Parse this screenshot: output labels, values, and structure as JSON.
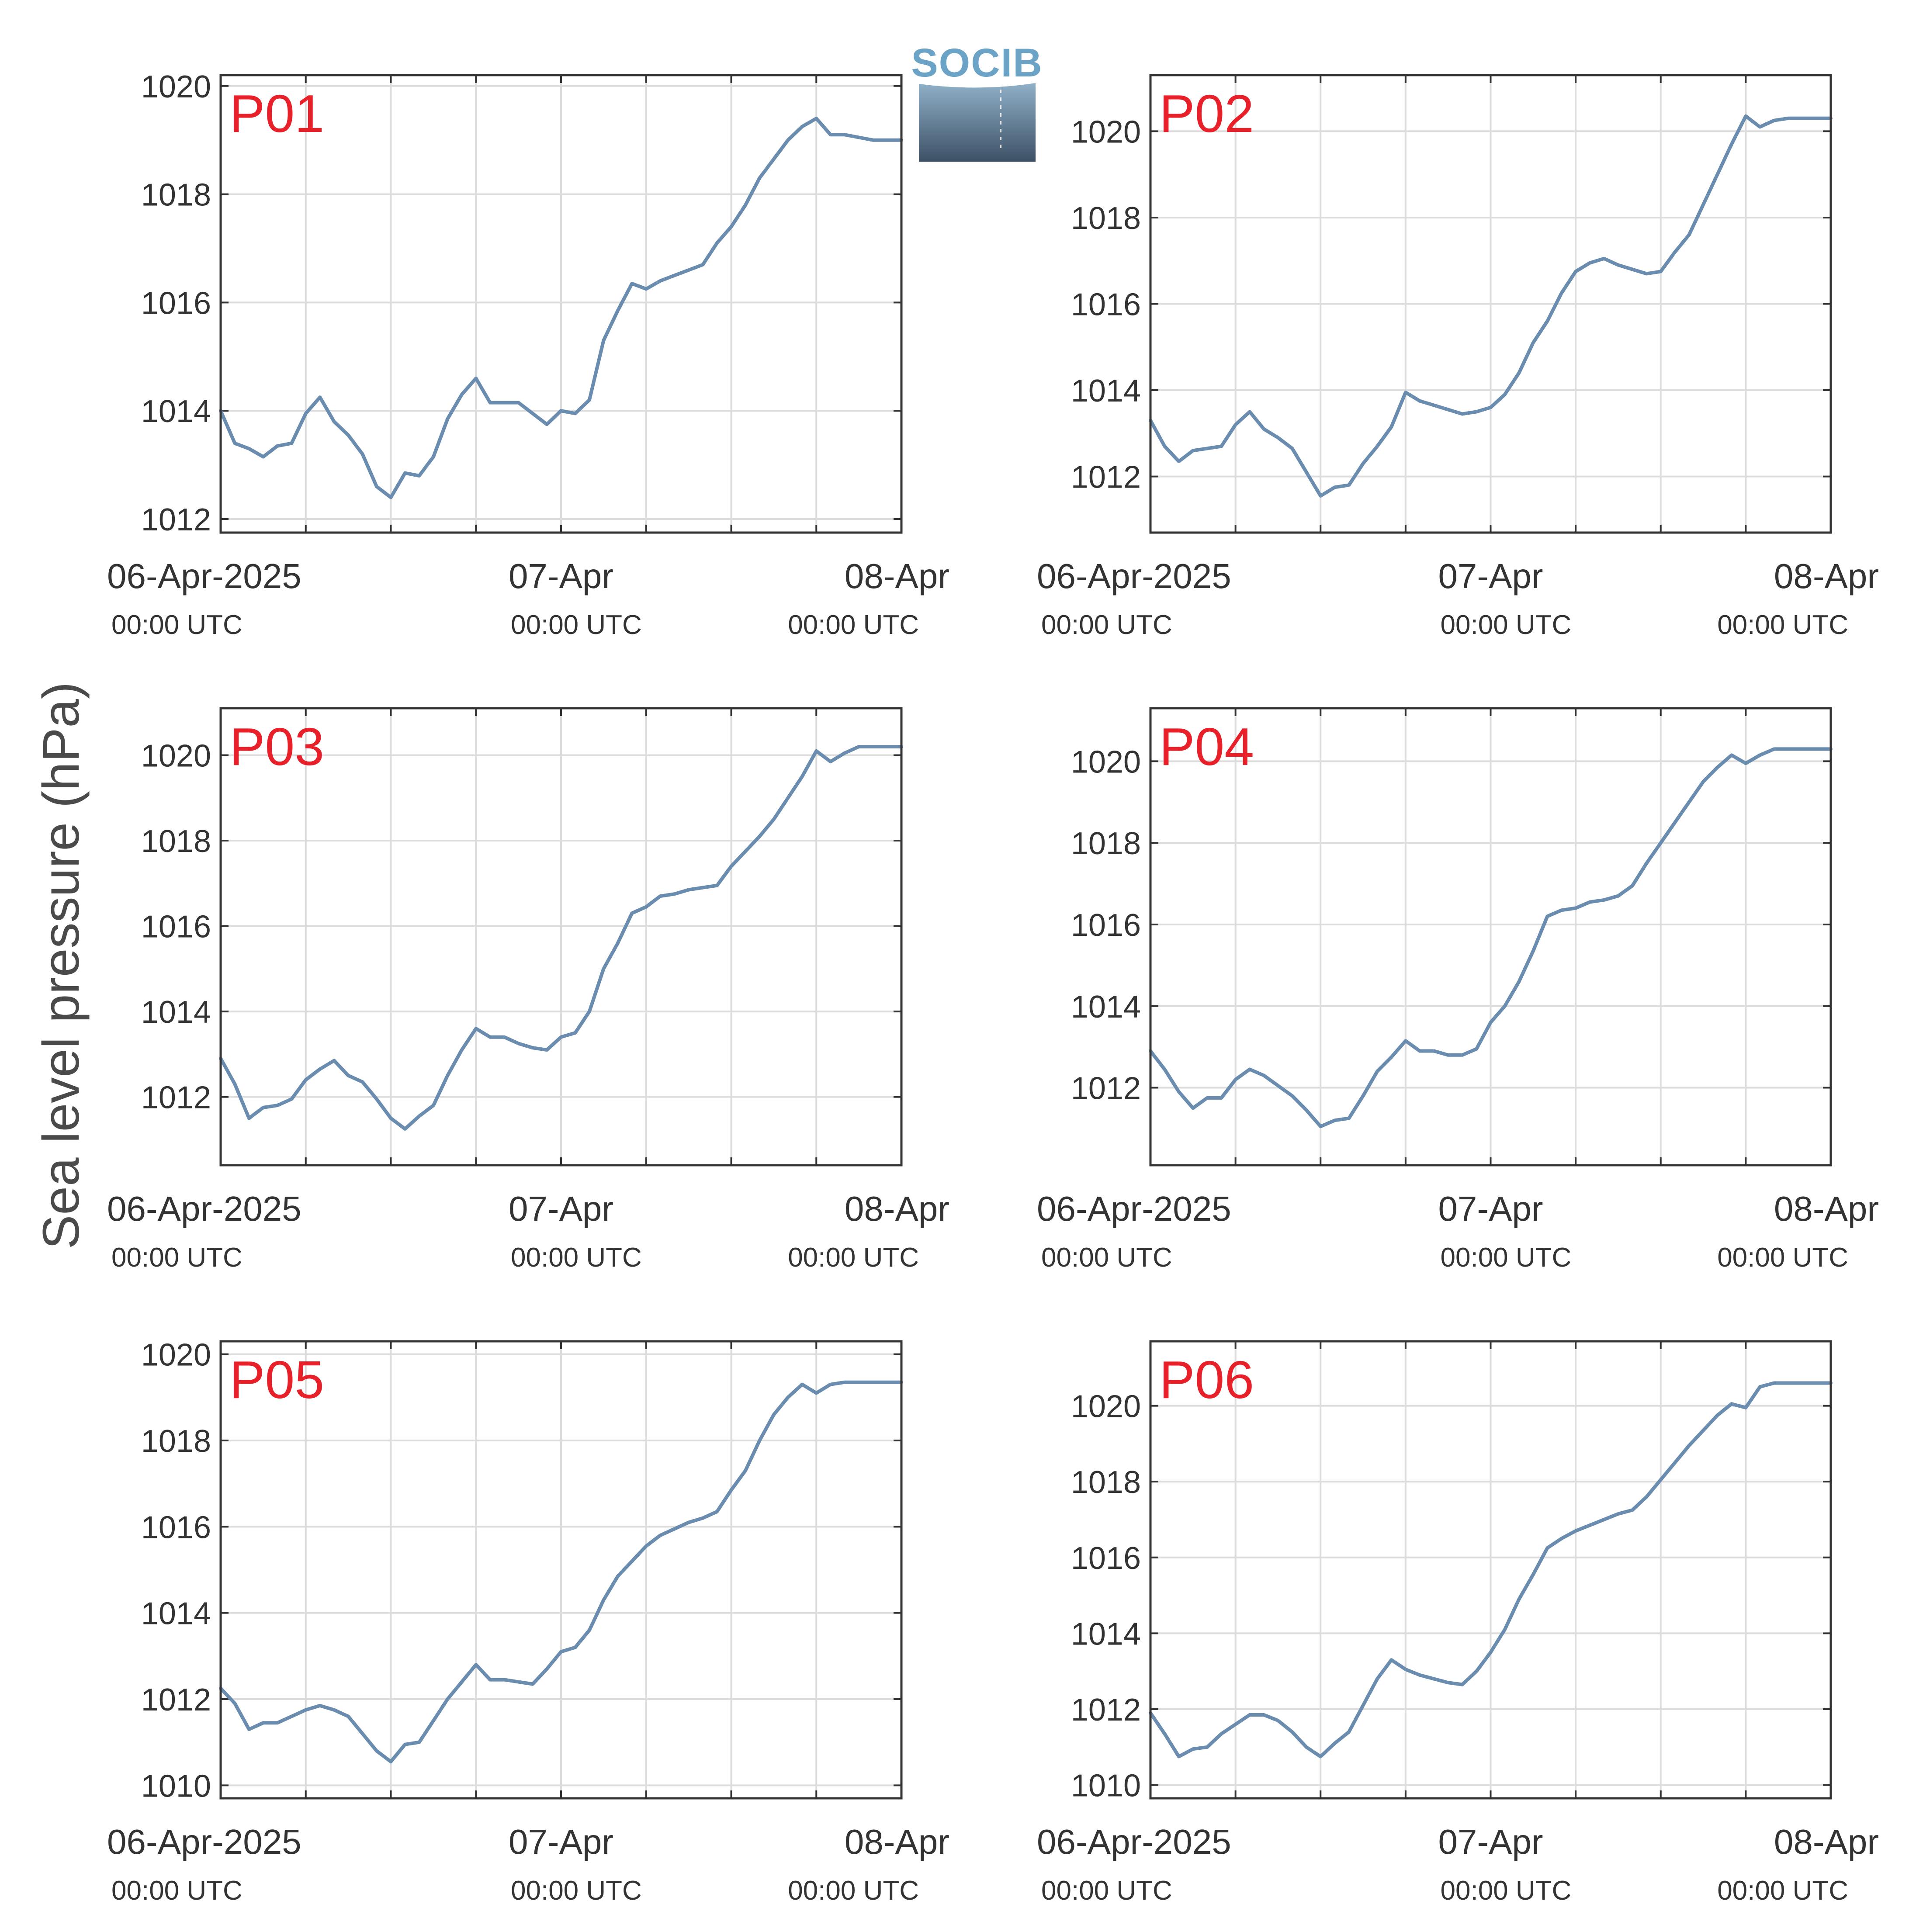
{
  "figure": {
    "ylabel": "Sea level pressure (hPa)",
    "logo_text": "SOCIB",
    "colors": {
      "line": "#6a8caf",
      "panel_label": "#e8202a",
      "grid": "#dcdcdc",
      "axes": "#333333",
      "logo_top": "#6aa3c6",
      "logo_bottom": "#3d5166"
    }
  },
  "chart_data": [
    {
      "type": "line",
      "title": "P01",
      "x_tick_labels": [
        {
          "date": "06-Apr-2025",
          "time": "00:00 UTC"
        },
        {
          "date": "07-Apr",
          "time": "00:00 UTC"
        },
        {
          "date": "08-Apr",
          "time": "00:00 UTC"
        }
      ],
      "xlim_hours": [
        0,
        48
      ],
      "ylim": [
        1011.75,
        1020.2
      ],
      "yticks": [
        1012,
        1014,
        1016,
        1018,
        1020
      ],
      "x_hours": [
        0,
        1,
        2,
        3,
        4,
        5,
        6,
        7,
        8,
        9,
        10,
        11,
        12,
        13,
        14,
        15,
        16,
        17,
        18,
        19,
        20,
        21,
        22,
        23,
        24,
        25,
        26,
        27,
        28,
        29,
        30,
        31,
        32,
        33,
        34,
        35,
        36,
        37,
        38,
        39,
        40,
        41,
        42,
        43,
        44,
        45,
        46,
        47,
        48
      ],
      "values": [
        1014.0,
        1013.4,
        1013.3,
        1013.15,
        1013.35,
        1013.4,
        1013.95,
        1014.25,
        1013.8,
        1013.55,
        1013.2,
        1012.6,
        1012.4,
        1012.85,
        1012.8,
        1013.15,
        1013.85,
        1014.3,
        1014.6,
        1014.15,
        1014.15,
        1014.15,
        1013.95,
        1013.75,
        1014.0,
        1013.95,
        1014.2,
        1015.3,
        1015.85,
        1016.35,
        1016.25,
        1016.4,
        1016.5,
        1016.6,
        1016.7,
        1017.1,
        1017.4,
        1017.8,
        1018.3,
        1018.65,
        1019.0,
        1019.25,
        1019.4,
        1019.1,
        1019.1,
        1019.05,
        1019.0,
        1019.0,
        1019.0
      ]
    },
    {
      "type": "line",
      "title": "P02",
      "x_tick_labels": [
        {
          "date": "06-Apr-2025",
          "time": "00:00 UTC"
        },
        {
          "date": "07-Apr",
          "time": "00:00 UTC"
        },
        {
          "date": "08-Apr",
          "time": "00:00 UTC"
        }
      ],
      "xlim_hours": [
        0,
        48
      ],
      "ylim": [
        1010.7,
        1021.3
      ],
      "yticks": [
        1012,
        1014,
        1016,
        1018,
        1020
      ],
      "x_hours": [
        0,
        1,
        2,
        3,
        4,
        5,
        6,
        7,
        8,
        9,
        10,
        11,
        12,
        13,
        14,
        15,
        16,
        17,
        18,
        19,
        20,
        21,
        22,
        23,
        24,
        25,
        26,
        27,
        28,
        29,
        30,
        31,
        32,
        33,
        34,
        35,
        36,
        37,
        38,
        39,
        40,
        41,
        42,
        43,
        44,
        45,
        46,
        47,
        48
      ],
      "values": [
        1013.3,
        1012.7,
        1012.35,
        1012.6,
        1012.65,
        1012.7,
        1013.2,
        1013.5,
        1013.1,
        1012.9,
        1012.65,
        1012.1,
        1011.55,
        1011.75,
        1011.8,
        1012.3,
        1012.7,
        1013.15,
        1013.95,
        1013.75,
        1013.65,
        1013.55,
        1013.45,
        1013.5,
        1013.6,
        1013.9,
        1014.4,
        1015.1,
        1015.6,
        1016.25,
        1016.75,
        1016.95,
        1017.05,
        1016.9,
        1016.8,
        1016.7,
        1016.75,
        1017.2,
        1017.6,
        1018.3,
        1019.0,
        1019.7,
        1020.35,
        1020.1,
        1020.25,
        1020.3,
        1020.3,
        1020.3,
        1020.3
      ]
    },
    {
      "type": "line",
      "title": "P03",
      "x_tick_labels": [
        {
          "date": "06-Apr-2025",
          "time": "00:00 UTC"
        },
        {
          "date": "07-Apr",
          "time": "00:00 UTC"
        },
        {
          "date": "08-Apr",
          "time": "00:00 UTC"
        }
      ],
      "xlim_hours": [
        0,
        48
      ],
      "ylim": [
        1010.4,
        1021.1
      ],
      "yticks": [
        1012,
        1014,
        1016,
        1018,
        1020
      ],
      "x_hours": [
        0,
        1,
        2,
        3,
        4,
        5,
        6,
        7,
        8,
        9,
        10,
        11,
        12,
        13,
        14,
        15,
        16,
        17,
        18,
        19,
        20,
        21,
        22,
        23,
        24,
        25,
        26,
        27,
        28,
        29,
        30,
        31,
        32,
        33,
        34,
        35,
        36,
        37,
        38,
        39,
        40,
        41,
        42,
        43,
        44,
        45,
        46,
        47,
        48
      ],
      "values": [
        1012.9,
        1012.3,
        1011.5,
        1011.75,
        1011.8,
        1011.95,
        1012.4,
        1012.65,
        1012.85,
        1012.5,
        1012.35,
        1011.95,
        1011.5,
        1011.25,
        1011.55,
        1011.8,
        1012.5,
        1013.1,
        1013.6,
        1013.4,
        1013.4,
        1013.25,
        1013.15,
        1013.1,
        1013.4,
        1013.5,
        1014.0,
        1015.0,
        1015.6,
        1016.3,
        1016.45,
        1016.7,
        1016.75,
        1016.85,
        1016.9,
        1016.95,
        1017.4,
        1017.75,
        1018.1,
        1018.5,
        1019.0,
        1019.5,
        1020.1,
        1019.85,
        1020.05,
        1020.2,
        1020.2,
        1020.2,
        1020.2
      ]
    },
    {
      "type": "line",
      "title": "P04",
      "x_tick_labels": [
        {
          "date": "06-Apr-2025",
          "time": "00:00 UTC"
        },
        {
          "date": "07-Apr",
          "time": "00:00 UTC"
        },
        {
          "date": "08-Apr",
          "time": "00:00 UTC"
        }
      ],
      "xlim_hours": [
        0,
        48
      ],
      "ylim": [
        1010.1,
        1021.3
      ],
      "yticks": [
        1012,
        1014,
        1016,
        1018,
        1020
      ],
      "x_hours": [
        0,
        1,
        2,
        3,
        4,
        5,
        6,
        7,
        8,
        9,
        10,
        11,
        12,
        13,
        14,
        15,
        16,
        17,
        18,
        19,
        20,
        21,
        22,
        23,
        24,
        25,
        26,
        27,
        28,
        29,
        30,
        31,
        32,
        33,
        34,
        35,
        36,
        37,
        38,
        39,
        40,
        41,
        42,
        43,
        44,
        45,
        46,
        47,
        48
      ],
      "values": [
        1012.9,
        1012.45,
        1011.9,
        1011.5,
        1011.75,
        1011.75,
        1012.2,
        1012.45,
        1012.3,
        1012.05,
        1011.8,
        1011.45,
        1011.05,
        1011.2,
        1011.25,
        1011.8,
        1012.4,
        1012.75,
        1013.15,
        1012.9,
        1012.9,
        1012.8,
        1012.8,
        1012.95,
        1013.6,
        1014.0,
        1014.6,
        1015.35,
        1016.2,
        1016.35,
        1016.4,
        1016.55,
        1016.6,
        1016.7,
        1016.95,
        1017.5,
        1018.0,
        1018.5,
        1019.0,
        1019.5,
        1019.85,
        1020.15,
        1019.95,
        1020.15,
        1020.3,
        1020.3,
        1020.3,
        1020.3,
        1020.3
      ]
    },
    {
      "type": "line",
      "title": "P05",
      "x_tick_labels": [
        {
          "date": "06-Apr-2025",
          "time": "00:00 UTC"
        },
        {
          "date": "07-Apr",
          "time": "00:00 UTC"
        },
        {
          "date": "08-Apr",
          "time": "00:00 UTC"
        }
      ],
      "xlim_hours": [
        0,
        48
      ],
      "ylim": [
        1009.7,
        1020.3
      ],
      "yticks": [
        1010,
        1012,
        1014,
        1016,
        1018,
        1020
      ],
      "x_hours": [
        0,
        1,
        2,
        3,
        4,
        5,
        6,
        7,
        8,
        9,
        10,
        11,
        12,
        13,
        14,
        15,
        16,
        17,
        18,
        19,
        20,
        21,
        22,
        23,
        24,
        25,
        26,
        27,
        28,
        29,
        30,
        31,
        32,
        33,
        34,
        35,
        36,
        37,
        38,
        39,
        40,
        41,
        42,
        43,
        44,
        45,
        46,
        47,
        48
      ],
      "values": [
        1012.25,
        1011.9,
        1011.3,
        1011.45,
        1011.45,
        1011.6,
        1011.75,
        1011.85,
        1011.75,
        1011.6,
        1011.2,
        1010.8,
        1010.55,
        1010.95,
        1011.0,
        1011.5,
        1012.0,
        1012.4,
        1012.8,
        1012.45,
        1012.45,
        1012.4,
        1012.35,
        1012.7,
        1013.1,
        1013.2,
        1013.6,
        1014.3,
        1014.85,
        1015.2,
        1015.55,
        1015.8,
        1015.95,
        1016.1,
        1016.2,
        1016.35,
        1016.85,
        1017.3,
        1018.0,
        1018.6,
        1019.0,
        1019.3,
        1019.1,
        1019.3,
        1019.35,
        1019.35,
        1019.35,
        1019.35,
        1019.35
      ]
    },
    {
      "type": "line",
      "title": "P06",
      "x_tick_labels": [
        {
          "date": "06-Apr-2025",
          "time": "00:00 UTC"
        },
        {
          "date": "07-Apr",
          "time": "00:00 UTC"
        },
        {
          "date": "08-Apr",
          "time": "00:00 UTC"
        }
      ],
      "xlim_hours": [
        0,
        48
      ],
      "ylim": [
        1009.65,
        1021.7
      ],
      "yticks": [
        1010,
        1012,
        1014,
        1016,
        1018,
        1020
      ],
      "x_hours": [
        0,
        1,
        2,
        3,
        4,
        5,
        6,
        7,
        8,
        9,
        10,
        11,
        12,
        13,
        14,
        15,
        16,
        17,
        18,
        19,
        20,
        21,
        22,
        23,
        24,
        25,
        26,
        27,
        28,
        29,
        30,
        31,
        32,
        33,
        34,
        35,
        36,
        37,
        38,
        39,
        40,
        41,
        42,
        43,
        44,
        45,
        46,
        47,
        48
      ],
      "values": [
        1011.9,
        1011.35,
        1010.75,
        1010.95,
        1011.0,
        1011.35,
        1011.6,
        1011.85,
        1011.85,
        1011.7,
        1011.4,
        1011.0,
        1010.75,
        1011.1,
        1011.4,
        1012.1,
        1012.8,
        1013.3,
        1013.05,
        1012.9,
        1012.8,
        1012.7,
        1012.65,
        1013.0,
        1013.5,
        1014.1,
        1014.9,
        1015.55,
        1016.25,
        1016.5,
        1016.7,
        1016.85,
        1017.0,
        1017.15,
        1017.25,
        1017.6,
        1018.05,
        1018.5,
        1018.95,
        1019.35,
        1019.75,
        1020.05,
        1019.95,
        1020.5,
        1020.6,
        1020.6,
        1020.6,
        1020.6,
        1020.6
      ]
    }
  ]
}
